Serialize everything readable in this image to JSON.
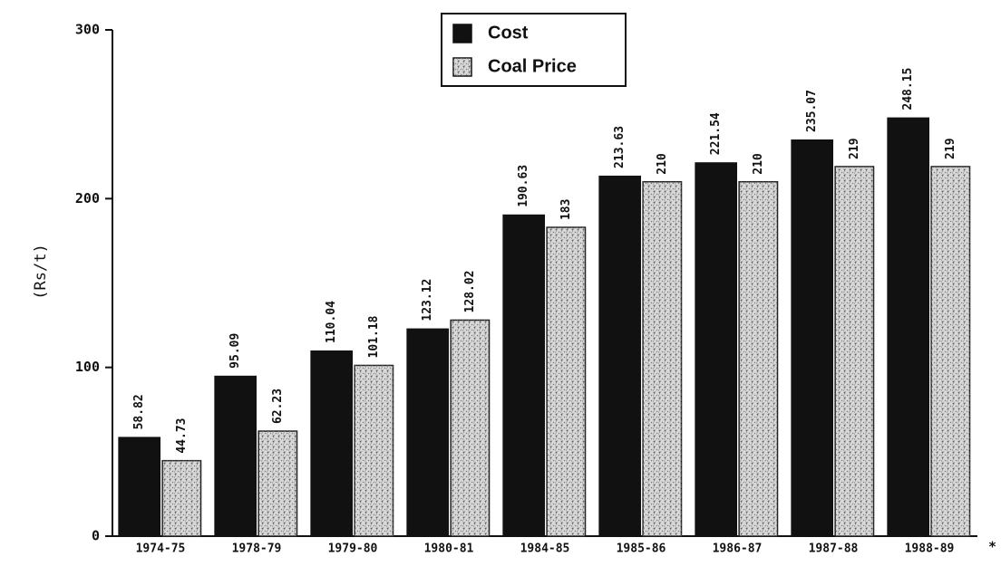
{
  "chart_data": {
    "type": "bar",
    "y_label": "(Rs/t)",
    "categories": [
      "1974-75",
      "1978-79",
      "1979-80",
      "1980-81",
      "1984-85",
      "1985-86",
      "1986-87",
      "1987-88",
      "1988-89"
    ],
    "annotation": "*",
    "series": [
      {
        "name": "Cost",
        "color": "#111111",
        "values": [
          58.82,
          95.09,
          110.04,
          123.12,
          190.63,
          213.63,
          221.54,
          235.07,
          248.15
        ]
      },
      {
        "name": "Coal Price",
        "color": "#d8d8d8",
        "values": [
          44.73,
          62.23,
          101.18,
          128.02,
          183,
          210,
          210,
          219,
          219
        ]
      }
    ],
    "ylim": [
      0,
      300
    ],
    "yticks": [
      0,
      100,
      200,
      300
    ],
    "grid": false
  }
}
